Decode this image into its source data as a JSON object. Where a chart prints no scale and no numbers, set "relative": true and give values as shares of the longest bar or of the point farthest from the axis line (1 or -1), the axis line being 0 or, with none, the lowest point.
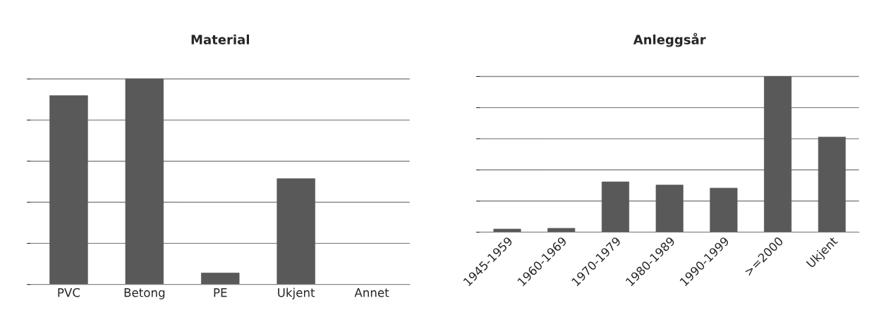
{
  "chart_data": [
    {
      "type": "bar",
      "title": "Material",
      "categories": [
        "PVC",
        "Betong",
        "PE",
        "Ukjent",
        "Annet"
      ],
      "values": [
        0.919,
        1,
        0.056,
        0.515,
        0
      ],
      "color": "#595959",
      "relative": true,
      "grid": "y",
      "legend": false
    },
    {
      "type": "bar",
      "title": "Anleggsår",
      "categories": [
        "1945-1959",
        "1960-1969",
        "1970-1979",
        "1980-1989",
        "1990-1999",
        ">=2000",
        "Ukjent"
      ],
      "values": [
        0.02,
        0.025,
        0.323,
        0.303,
        0.283,
        1,
        0.611
      ],
      "color": "#595959",
      "relative": true,
      "grid": "y",
      "legend": false
    }
  ]
}
